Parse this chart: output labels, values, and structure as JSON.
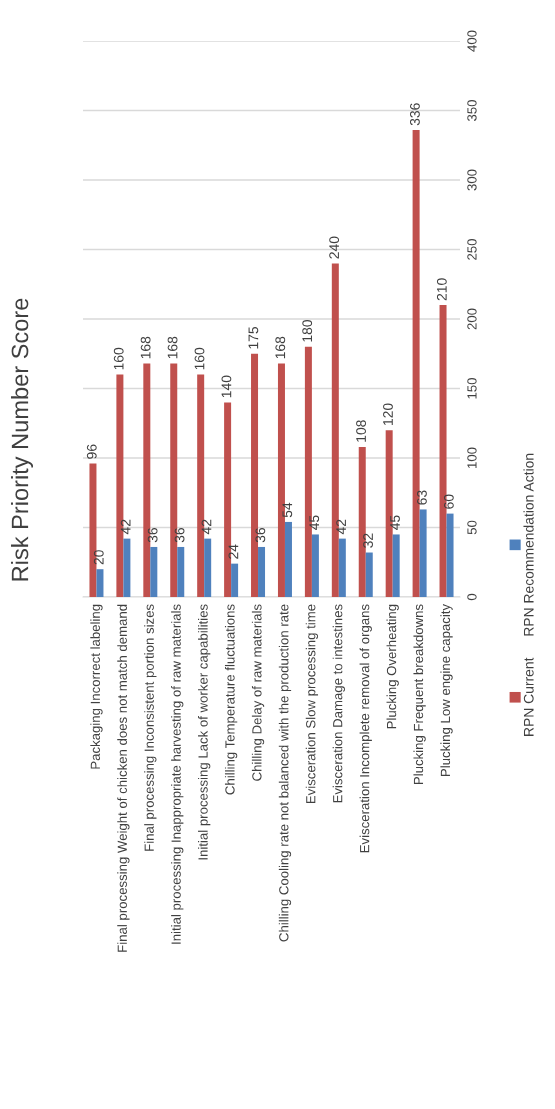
{
  "chart_data": {
    "type": "bar",
    "title": "Risk Priority Number Score",
    "categories": [
      "Packaging Incorrect labeling",
      "Final processing Weight of chicken does not match demand",
      "Final processing Inconsistent portion sizes",
      "Initial processing Inappropriate harvesting of raw materials",
      "Initial processing Lack of worker capabilities",
      "Chilling Temperature fluctuations",
      "Chilling Delay of raw materials",
      "Chilling Cooling rate not balanced with the production rate",
      "Evisceration Slow processing time",
      "Evisceration Damage to intestines",
      "Evisceration Incomplete removal of organs",
      "Plucking Overheating",
      "Plucking Frequent breakdowns",
      "Plucking Low engine capacity"
    ],
    "series": [
      {
        "name": "RPN Current",
        "color": "#c0504d",
        "values": [
          96,
          160,
          168,
          168,
          160,
          140,
          175,
          168,
          180,
          240,
          108,
          120,
          336,
          210
        ]
      },
      {
        "name": "RPN Recommendation Action",
        "color": "#4f81bd",
        "values": [
          20,
          42,
          36,
          36,
          42,
          24,
          36,
          54,
          45,
          42,
          32,
          45,
          63,
          60
        ]
      }
    ],
    "ylim": [
      0,
      400
    ],
    "yticks": [
      0,
      50,
      100,
      150,
      200,
      250,
      300,
      350,
      400
    ],
    "grid": "y",
    "legend": "right",
    "data_labels": true
  }
}
